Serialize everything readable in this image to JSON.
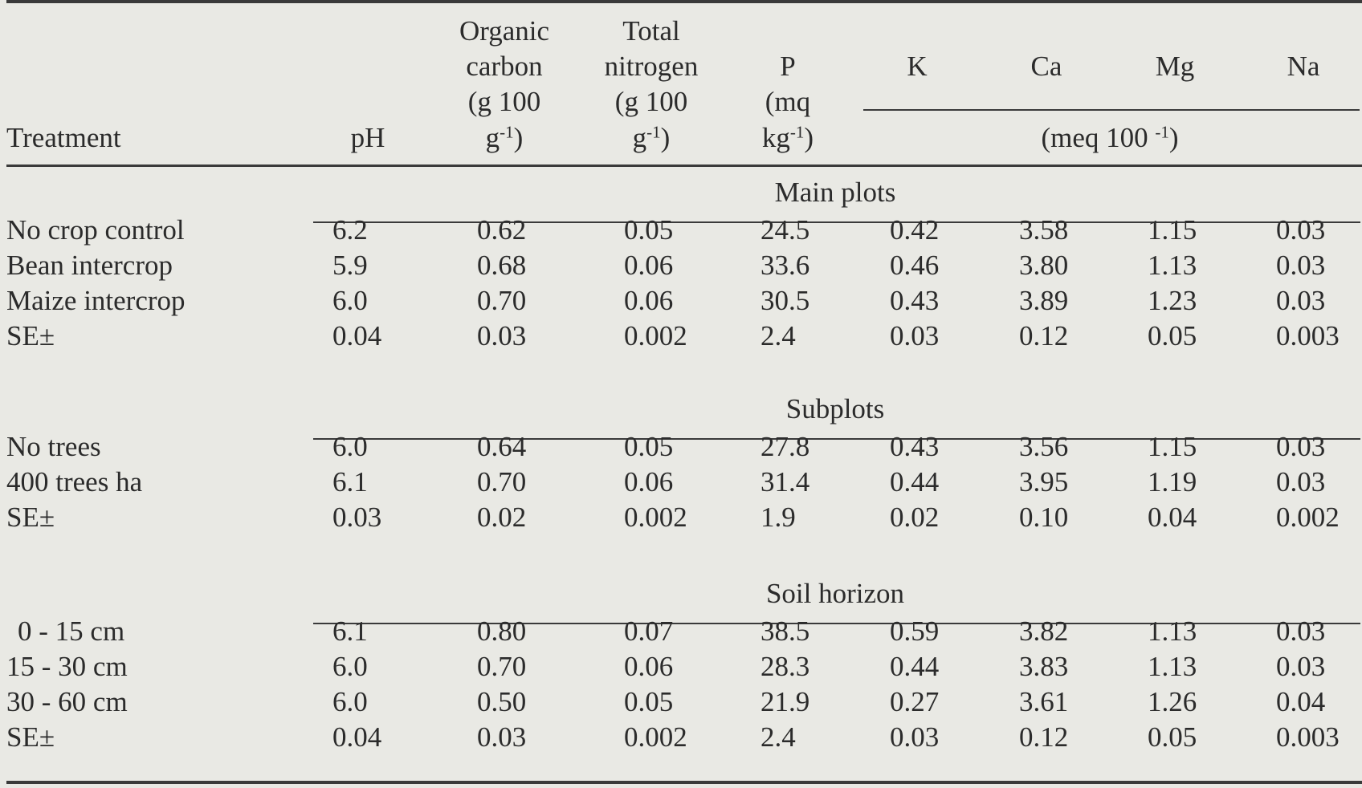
{
  "header": {
    "treatment": "Treatment",
    "ph": "pH",
    "oc": [
      "Organic",
      "carbon",
      "(g 100",
      "g"
    ],
    "oc_sup": "-1",
    "oc_close": ")",
    "tn": [
      "Total",
      "nitrogen",
      "(g 100",
      "g"
    ],
    "tn_sup": "-1",
    "tn_close": ")",
    "p": [
      "P",
      "(mq",
      "kg"
    ],
    "p_sup": "-1",
    "p_close": ")",
    "k": "K",
    "ca": "Ca",
    "mg": "Mg",
    "na": "Na",
    "unit": "(meq 100 ",
    "unit_sup": "-1",
    "unit_close": ")"
  },
  "sections": [
    {
      "title": "Main plots",
      "rows": [
        {
          "label": "No crop control",
          "values": [
            "6.2",
            "0.62",
            "0.05",
            "24.5",
            "0.42",
            "3.58",
            "1.15",
            "0.03"
          ]
        },
        {
          "label": "Bean intercrop",
          "values": [
            "5.9",
            "0.68",
            "0.06",
            "33.6",
            "0.46",
            "3.80",
            "1.13",
            "0.03"
          ]
        },
        {
          "label": "Maize intercrop",
          "values": [
            "6.0",
            "0.70",
            "0.06",
            "30.5",
            "0.43",
            "3.89",
            "1.23",
            "0.03"
          ]
        },
        {
          "label": "SE±",
          "values": [
            "0.04",
            "0.03",
            "0.002",
            "2.4",
            "0.03",
            "0.12",
            "0.05",
            "0.003"
          ]
        }
      ]
    },
    {
      "title": "Subplots",
      "rows": [
        {
          "label": "No trees",
          "values": [
            "6.0",
            "0.64",
            "0.05",
            "27.8",
            "0.43",
            "3.56",
            "1.15",
            "0.03"
          ]
        },
        {
          "label": "400 trees ha",
          "values": [
            "6.1",
            "0.70",
            "0.06",
            "31.4",
            "0.44",
            "3.95",
            "1.19",
            "0.03"
          ]
        },
        {
          "label": "SE±",
          "values": [
            "0.03",
            "0.02",
            "0.002",
            "1.9",
            "0.02",
            "0.10",
            "0.04",
            "0.002"
          ]
        }
      ]
    },
    {
      "title": "Soil horizon",
      "rows": [
        {
          "label": "0 - 15 cm",
          "values": [
            "6.1",
            "0.80",
            "0.07",
            "38.5",
            "0.59",
            "3.82",
            "1.13",
            "0.03"
          ]
        },
        {
          "label": "15 - 30 cm",
          "values": [
            "6.0",
            "0.70",
            "0.06",
            "28.3",
            "0.44",
            "3.83",
            "1.13",
            "0.03"
          ]
        },
        {
          "label": "30 - 60 cm",
          "values": [
            "6.0",
            "0.50",
            "0.05",
            "21.9",
            "0.27",
            "3.61",
            "1.26",
            "0.04"
          ]
        },
        {
          "label": "SE±",
          "values": [
            "0.04",
            "0.03",
            "0.002",
            "2.4",
            "0.03",
            "0.12",
            "0.05",
            "0.003"
          ]
        }
      ]
    }
  ]
}
